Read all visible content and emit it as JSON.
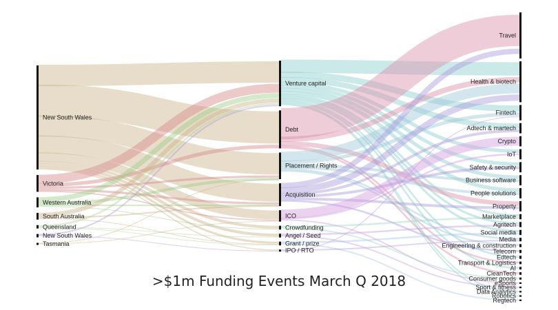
{
  "title": ">$1m Funding Events March Q 2018",
  "chart_data": {
    "type": "sankey",
    "title": ">$1m Funding Events March Q 2018",
    "columns": [
      {
        "name": "state",
        "nodes": [
          {
            "label": "New South Wales",
            "value": 31
          },
          {
            "label": "Victoria",
            "value": 5
          },
          {
            "label": "Western Australia",
            "value": 3
          },
          {
            "label": "South Australia",
            "value": 2
          },
          {
            "label": "Queensland",
            "value": 1
          },
          {
            "label": "New South Wales",
            "value": 1
          },
          {
            "label": "Tasmania",
            "value": 0.5
          }
        ]
      },
      {
        "name": "funding_type",
        "nodes": [
          {
            "label": "Venture capital",
            "value": 12
          },
          {
            "label": "Debt",
            "value": 10
          },
          {
            "label": "Placement / Rights",
            "value": 7
          },
          {
            "label": "Acquisition",
            "value": 6
          },
          {
            "label": "ICO",
            "value": 3
          },
          {
            "label": "Crowdfunding",
            "value": 1
          },
          {
            "label": "Angel / Seed",
            "value": 1
          },
          {
            "label": "Grant / prize",
            "value": 1
          },
          {
            "label": "IPO / RTO",
            "value": 0.5
          }
        ]
      },
      {
        "name": "sector",
        "nodes": [
          {
            "label": "Travel",
            "value": 9
          },
          {
            "label": "Health & biotech",
            "value": 8
          },
          {
            "label": "Fintech",
            "value": 3
          },
          {
            "label": "Adtech & martech",
            "value": 2
          },
          {
            "label": "Crypto",
            "value": 2
          },
          {
            "label": "IoT",
            "value": 2
          },
          {
            "label": "Safety & security",
            "value": 2
          },
          {
            "label": "Business software",
            "value": 2
          },
          {
            "label": "People solutions",
            "value": 2
          },
          {
            "label": "Property",
            "value": 2
          },
          {
            "label": "Marketplace",
            "value": 1
          },
          {
            "label": "Agritech",
            "value": 1
          },
          {
            "label": "Social media",
            "value": 1
          },
          {
            "label": "Media",
            "value": 0.7
          },
          {
            "label": "Engineering & construction",
            "value": 0.6
          },
          {
            "label": "Telecom",
            "value": 0.6
          },
          {
            "label": "Edtech",
            "value": 0.6
          },
          {
            "label": "Transport & Logistics",
            "value": 0.5
          },
          {
            "label": "AI",
            "value": 0.5
          },
          {
            "label": "CleanTech",
            "value": 0.5
          },
          {
            "label": "Consumer goods",
            "value": 0.4
          },
          {
            "label": "eSports",
            "value": 0.3
          },
          {
            "label": "Sport & fitness",
            "value": 0.3
          },
          {
            "label": "Data Analytics",
            "value": 0.3
          },
          {
            "label": "Robotics",
            "value": 0.3
          },
          {
            "label": "Regtech",
            "value": 0.3
          }
        ]
      }
    ],
    "links_left": [
      {
        "from": 0,
        "to": 0,
        "value": 6
      },
      {
        "from": 0,
        "to": 1,
        "value": 9
      },
      {
        "from": 0,
        "to": 2,
        "value": 6
      },
      {
        "from": 0,
        "to": 3,
        "value": 5
      },
      {
        "from": 0,
        "to": 4,
        "value": 2.5
      },
      {
        "from": 0,
        "to": 5,
        "value": 0.8
      },
      {
        "from": 0,
        "to": 6,
        "value": 0.8
      },
      {
        "from": 0,
        "to": 7,
        "value": 0.6
      },
      {
        "from": 0,
        "to": 8,
        "value": 0.3
      },
      {
        "from": 1,
        "to": 0,
        "value": 2.5
      },
      {
        "from": 1,
        "to": 1,
        "value": 1
      },
      {
        "from": 1,
        "to": 2,
        "value": 0.6
      },
      {
        "from": 1,
        "to": 3,
        "value": 0.6
      },
      {
        "from": 1,
        "to": 4,
        "value": 0.3
      },
      {
        "from": 2,
        "to": 0,
        "value": 1.4
      },
      {
        "from": 2,
        "to": 2,
        "value": 0.8
      },
      {
        "from": 2,
        "to": 3,
        "value": 0.4
      },
      {
        "from": 2,
        "to": 5,
        "value": 0.2
      },
      {
        "from": 3,
        "to": 0,
        "value": 1.2
      },
      {
        "from": 3,
        "to": 3,
        "value": 0.4
      },
      {
        "from": 3,
        "to": 7,
        "value": 0.2
      },
      {
        "from": 4,
        "to": 0,
        "value": 0.5
      },
      {
        "from": 4,
        "to": 6,
        "value": 0.2
      },
      {
        "from": 4,
        "to": 7,
        "value": 0.2
      },
      {
        "from": 5,
        "to": 0,
        "value": 0.4
      },
      {
        "from": 5,
        "to": 8,
        "value": 0.2
      },
      {
        "from": 6,
        "to": 2,
        "value": 0.2
      },
      {
        "from": 6,
        "to": 4,
        "value": 0.2
      }
    ],
    "links_right": [
      {
        "from": 0,
        "to": 1,
        "value": 3
      },
      {
        "from": 0,
        "to": 2,
        "value": 1.4
      },
      {
        "from": 0,
        "to": 3,
        "value": 1.2
      },
      {
        "from": 0,
        "to": 5,
        "value": 0.8
      },
      {
        "from": 0,
        "to": 6,
        "value": 0.8
      },
      {
        "from": 0,
        "to": 7,
        "value": 0.8
      },
      {
        "from": 0,
        "to": 8,
        "value": 0.8
      },
      {
        "from": 0,
        "to": 10,
        "value": 0.5
      },
      {
        "from": 0,
        "to": 11,
        "value": 0.5
      },
      {
        "from": 0,
        "to": 12,
        "value": 0.5
      },
      {
        "from": 0,
        "to": 16,
        "value": 0.4
      },
      {
        "from": 0,
        "to": 18,
        "value": 0.4
      },
      {
        "from": 0,
        "to": 23,
        "value": 0.3
      },
      {
        "from": 0,
        "to": 24,
        "value": 0.3
      },
      {
        "from": 1,
        "to": 0,
        "value": 7
      },
      {
        "from": 1,
        "to": 1,
        "value": 1.2
      },
      {
        "from": 1,
        "to": 9,
        "value": 1
      },
      {
        "from": 1,
        "to": 17,
        "value": 0.4
      },
      {
        "from": 1,
        "to": 19,
        "value": 0.4
      },
      {
        "from": 2,
        "to": 1,
        "value": 2.2
      },
      {
        "from": 2,
        "to": 2,
        "value": 0.8
      },
      {
        "from": 2,
        "to": 7,
        "value": 0.6
      },
      {
        "from": 2,
        "to": 8,
        "value": 0.6
      },
      {
        "from": 2,
        "to": 13,
        "value": 0.4
      },
      {
        "from": 2,
        "to": 14,
        "value": 0.4
      },
      {
        "from": 3,
        "to": 0,
        "value": 1.2
      },
      {
        "from": 3,
        "to": 1,
        "value": 1.4
      },
      {
        "from": 3,
        "to": 3,
        "value": 0.6
      },
      {
        "from": 3,
        "to": 6,
        "value": 0.6
      },
      {
        "from": 3,
        "to": 9,
        "value": 0.6
      },
      {
        "from": 3,
        "to": 15,
        "value": 0.4
      },
      {
        "from": 4,
        "to": 4,
        "value": 2
      },
      {
        "from": 4,
        "to": 5,
        "value": 0.4
      },
      {
        "from": 4,
        "to": 21,
        "value": 0.3
      },
      {
        "from": 5,
        "to": 10,
        "value": 0.4
      },
      {
        "from": 5,
        "to": 20,
        "value": 0.3
      },
      {
        "from": 6,
        "to": 11,
        "value": 0.4
      },
      {
        "from": 6,
        "to": 22,
        "value": 0.3
      },
      {
        "from": 7,
        "to": 12,
        "value": 0.4
      },
      {
        "from": 7,
        "to": 25,
        "value": 0.3
      },
      {
        "from": 8,
        "to": 13,
        "value": 0.3
      },
      {
        "from": 8,
        "to": 2,
        "value": 0.2
      }
    ],
    "colors": {
      "left_flows": [
        "#c9b48a",
        "#d88a8a",
        "#9fcb8a",
        "#c9b48a",
        "#b6d2a0",
        "#b39bd6",
        "#c9b48a"
      ],
      "right_flows": [
        "#8fcfcf",
        "#d98fa8",
        "#9ec7d9",
        "#a99bdb",
        "#d59be0",
        "#9fd6c5",
        "#c7a5e0",
        "#a8c8e8",
        "#b9a0e0"
      ]
    }
  }
}
